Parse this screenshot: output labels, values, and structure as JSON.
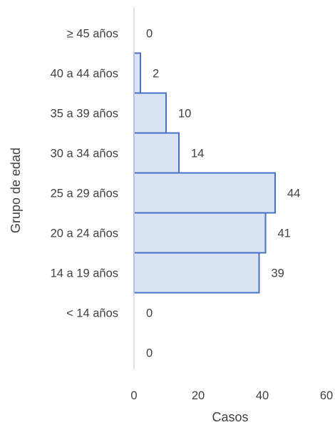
{
  "chart_data": {
    "type": "bar",
    "orientation": "horizontal",
    "categories": [
      "≥ 45 años",
      "40 a 44 años",
      "35 a 39 años",
      "30 a 34 años",
      "25 a 29 años",
      "20 a 24 años",
      "14 a 19 años",
      "< 14 años",
      ""
    ],
    "values": [
      0,
      2,
      10,
      14,
      44,
      41,
      39,
      0,
      0
    ],
    "data_labels": [
      "0",
      "2",
      "10",
      "14",
      "44",
      "41",
      "39",
      "0",
      "0"
    ],
    "xlabel": "Casos",
    "ylabel": "Grupo de edad",
    "xlim": [
      0,
      60
    ],
    "xticks": [
      "0",
      "20",
      "40",
      "60"
    ],
    "grid": false,
    "legend": "none",
    "colors": {
      "bar_fill": "#dae3f3",
      "bar_stroke": "#4472c4",
      "axis": "#d9d9d9",
      "text": "#404040"
    }
  }
}
